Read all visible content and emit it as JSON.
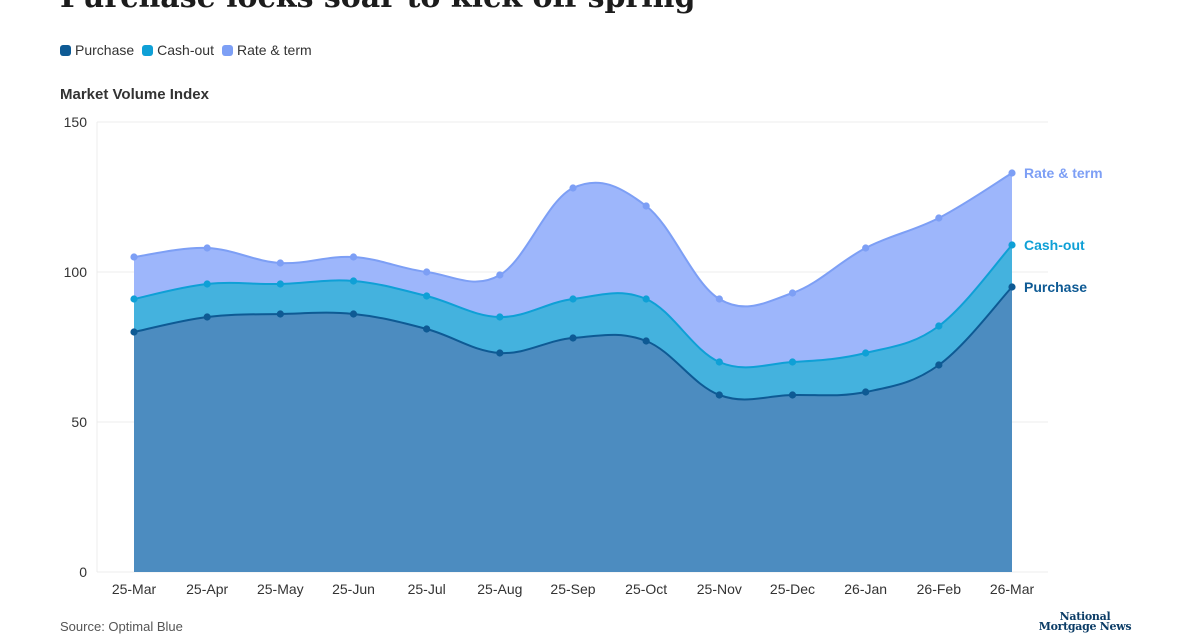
{
  "page": {
    "title": "Purchase locks soar to kick off spring",
    "source": "Source: Optimal Blue",
    "logo_line1": "National",
    "logo_line2": "Mortgage News"
  },
  "colors": {
    "purchase": "#0e5a94",
    "cashout": "#0fa0d6",
    "rate_term": "#7d9ff5",
    "purchase_fill": "#4c8cc0",
    "cashout_fill": "#44b2de",
    "rate_term_fill": "#9db6fb",
    "grid": "#ececec",
    "axis_text": "#333333"
  },
  "chart_data": {
    "type": "area",
    "stacked": true,
    "title": "Purchase locks soar to kick off spring",
    "ylabel": "Market Volume Index",
    "xlabel": "",
    "ylim": [
      0,
      150
    ],
    "yticks": [
      0,
      50,
      100,
      150
    ],
    "grid": true,
    "legend_position": "top-left",
    "categories": [
      "25-Mar",
      "25-Apr",
      "25-May",
      "25-Jun",
      "25-Jul",
      "25-Aug",
      "25-Sep",
      "25-Oct",
      "25-Nov",
      "25-Dec",
      "26-Jan",
      "26-Feb",
      "26-Mar"
    ],
    "series": [
      {
        "name": "Purchase",
        "color_key": "purchase",
        "cumulative": [
          80,
          85,
          86,
          86,
          81,
          73,
          78,
          77,
          59,
          59,
          60,
          69,
          95
        ]
      },
      {
        "name": "Cash-out",
        "color_key": "cashout",
        "cumulative": [
          91,
          96,
          96,
          97,
          92,
          85,
          91,
          91,
          70,
          70,
          73,
          82,
          109
        ]
      },
      {
        "name": "Rate & term",
        "color_key": "rate_term",
        "cumulative": [
          105,
          108,
          103,
          105,
          100,
          99,
          128,
          122,
          91,
          93,
          108,
          118,
          133
        ]
      }
    ],
    "end_labels": [
      "Purchase",
      "Cash-out",
      "Rate & term"
    ]
  }
}
